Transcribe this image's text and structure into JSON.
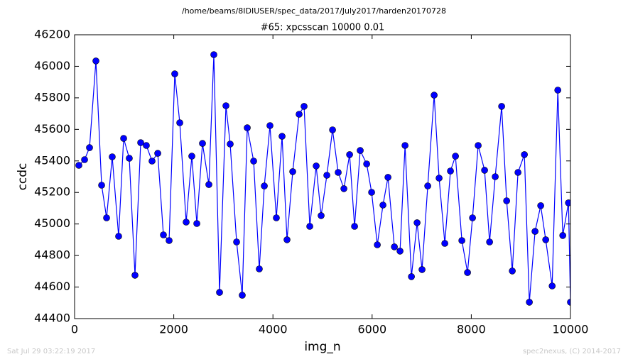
{
  "chart_data": {
    "type": "line",
    "header": "/home/beams/8IDIUSER/spec_data/2017/July2017/harden20170728",
    "title": "#65: xpcsscan 10000 0.01",
    "xlabel": "img_n",
    "ylabel": "ccdc",
    "footer_left": "Sat Jul 29 03:22:19 2017",
    "footer_right": "spec2nexus, (C) 2014-2017",
    "xlim": [
      0,
      10000
    ],
    "xticks": [
      0,
      2000,
      4000,
      6000,
      8000,
      10000
    ],
    "ylim": [
      44400,
      46200
    ],
    "yticks": [
      44400,
      44600,
      44800,
      45000,
      45200,
      45400,
      45600,
      45800,
      46000,
      46200
    ],
    "grid": false,
    "series": [
      {
        "color": "#0000ff",
        "x": [
          86,
          201,
          301,
          430,
          545,
          645,
          759,
          888,
          989,
          1103,
          1218,
          1333,
          1447,
          1562,
          1677,
          1791,
          1906,
          2020,
          2121,
          2250,
          2364,
          2465,
          2579,
          2708,
          2808,
          2923,
          3052,
          3138,
          3267,
          3381,
          3482,
          3611,
          3725,
          3826,
          3940,
          4069,
          4184,
          4284,
          4399,
          4528,
          4628,
          4743,
          4872,
          4972,
          5087,
          5202,
          5316,
          5431,
          5546,
          5646,
          5760,
          5890,
          5990,
          6105,
          6219,
          6320,
          6449,
          6563,
          6664,
          6793,
          6907,
          7007,
          7122,
          7251,
          7351,
          7466,
          7580,
          7681,
          7810,
          7924,
          8025,
          8139,
          8268,
          8369,
          8483,
          8612,
          8713,
          8827,
          8942,
          9071,
          9171,
          9286,
          9400,
          9501,
          9631,
          9745,
          9845,
          9960,
          10000
        ],
        "values": [
          45372,
          45408,
          45484,
          46034,
          45246,
          45039,
          45426,
          44922,
          45543,
          45417,
          44675,
          45516,
          45498,
          45399,
          45448,
          44931,
          44895,
          45952,
          45642,
          45012,
          45430,
          45003,
          45511,
          45250,
          46074,
          44566,
          45750,
          45507,
          44886,
          44548,
          45610,
          45399,
          44715,
          45241,
          45624,
          45039,
          45556,
          44900,
          45332,
          45696,
          45746,
          44985,
          45368,
          45053,
          45309,
          45597,
          45327,
          45224,
          45440,
          44985,
          45466,
          45381,
          45201,
          44868,
          45120,
          45296,
          44855,
          44828,
          45498,
          44666,
          45008,
          44711,
          45241,
          45817,
          45291,
          44877,
          45336,
          45430,
          44895,
          44692,
          45039,
          45498,
          45341,
          44886,
          45300,
          45746,
          45147,
          44702,
          45327,
          45440,
          44504,
          44953,
          45116,
          44900,
          44607,
          45849,
          44927,
          45134,
          44504
        ]
      }
    ]
  }
}
